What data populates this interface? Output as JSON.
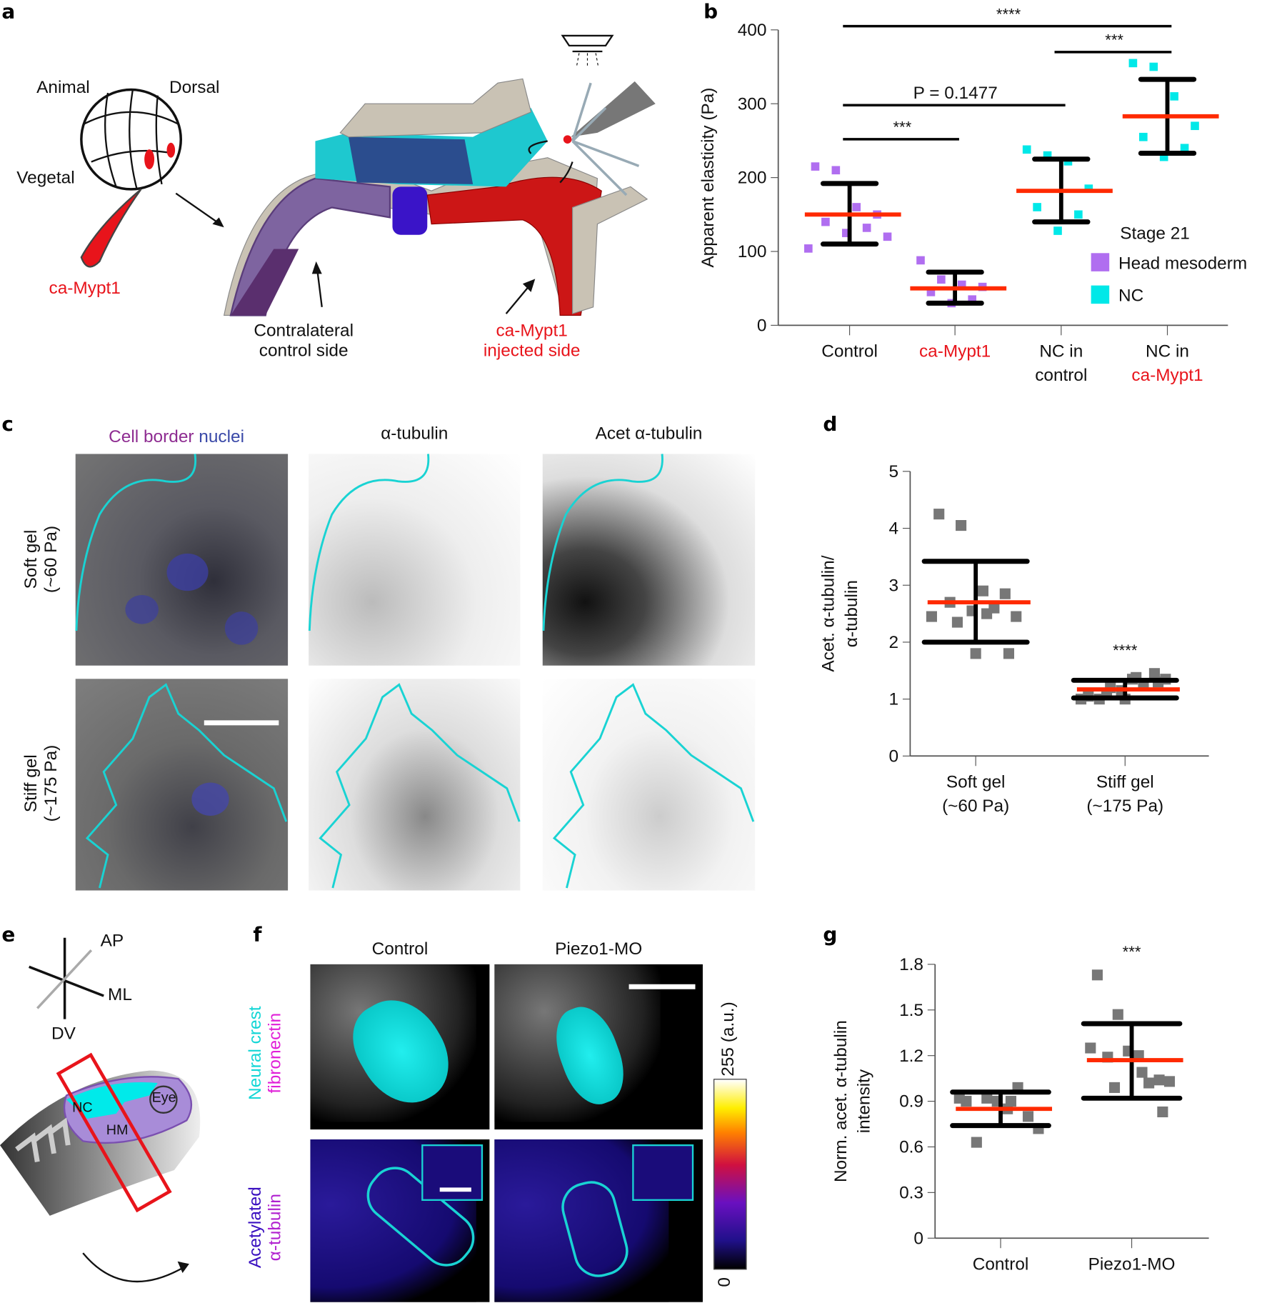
{
  "panels": {
    "a": "a",
    "b": "b",
    "c": "c",
    "d": "d",
    "e": "e",
    "f": "f",
    "g": "g"
  },
  "panel_a": {
    "animal": "Animal",
    "dorsal": "Dorsal",
    "vegetal": "Vegetal",
    "injection": "ca-Mypt1",
    "control_side_1": "Contralateral",
    "control_side_2": "control side",
    "injected_side_1": "ca-Mypt1",
    "injected_side_2": "injected side"
  },
  "panel_c": {
    "col1_part1": "Cell border",
    "col1_part2": "nuclei",
    "col2": "α-tubulin",
    "col3": "Acet α-tubulin",
    "row1_1": "Soft gel",
    "row1_2": "(~60 Pa)",
    "row2_1": "Stiff gel",
    "row2_2": "(~175 Pa)"
  },
  "panel_e": {
    "ap": "AP",
    "ml": "ML",
    "dv": "DV",
    "nc": "NC",
    "hm": "HM",
    "eye": "Eye"
  },
  "panel_f": {
    "col1": "Control",
    "col2": "Piezo1-MO",
    "row1_a": "Neural crest",
    "row1_b": "fibronectin",
    "row2_a": "Acetylated",
    "row2_b": "α-tubulin",
    "colorbar_max": "255 (a.u.)",
    "colorbar_min": "0"
  },
  "colors": {
    "red": "#ff2a00",
    "head_mesoderm": "#b06ef0",
    "nc": "#00e8e8",
    "points": "#777777",
    "cyan_outline": "#19d3d3"
  },
  "chart_data": [
    {
      "id": "b",
      "type": "scatter",
      "ylabel": "Apparent elasticity (Pa)",
      "ylim": [
        0,
        400
      ],
      "yticks": [
        0,
        100,
        200,
        300,
        400
      ],
      "categories": [
        "Control",
        "ca-Mypt1",
        "NC in control",
        "NC in ca-Mypt1"
      ],
      "category_lines": [
        [
          "Control"
        ],
        [
          "ca-Mypt1"
        ],
        [
          "NC in",
          "control"
        ],
        [
          "NC in",
          "ca-Mypt1"
        ]
      ],
      "category_colors": [
        [
          "#111"
        ],
        [
          "#e8141b"
        ],
        [
          "#111",
          "#111"
        ],
        [
          "#111",
          "#e8141b"
        ]
      ],
      "legend": {
        "title": "Stage 21",
        "items": [
          {
            "name": "Head mesoderm",
            "color": "#b06ef0"
          },
          {
            "name": "NC",
            "color": "#00e8e8"
          }
        ]
      },
      "groups": [
        {
          "color": "#b06ef0",
          "mean": 150,
          "sd_low": 110,
          "sd_high": 192,
          "points": [
            215,
            210,
            160,
            150,
            140,
            132,
            125,
            120,
            104
          ]
        },
        {
          "color": "#b06ef0",
          "mean": 50,
          "sd_low": 30,
          "sd_high": 72,
          "points": [
            88,
            62,
            55,
            52,
            45,
            35,
            30
          ]
        },
        {
          "color": "#00e8e8",
          "mean": 182,
          "sd_low": 140,
          "sd_high": 225,
          "points": [
            238,
            230,
            222,
            185,
            160,
            150,
            128
          ]
        },
        {
          "color": "#00e8e8",
          "mean": 283,
          "sd_low": 233,
          "sd_high": 333,
          "points": [
            355,
            350,
            310,
            270,
            255,
            240,
            228
          ]
        }
      ],
      "significance": [
        {
          "from": 0,
          "to": 3,
          "y": 405,
          "label": "****"
        },
        {
          "from": 2,
          "to": 3,
          "y": 370,
          "label": "***"
        },
        {
          "from": 0,
          "to": 2,
          "y": 298,
          "label": "P = 0.1477"
        },
        {
          "from": 0,
          "to": 1,
          "y": 252,
          "label": "***"
        }
      ]
    },
    {
      "id": "d",
      "type": "scatter",
      "ylabel_lines": [
        "Acet. α-tubulin/",
        "α-tubulin"
      ],
      "ylim": [
        0,
        5
      ],
      "yticks": [
        0,
        1,
        2,
        3,
        4,
        5
      ],
      "categories": [
        "Soft gel (~60 Pa)",
        "Stiff gel (~175 Pa)"
      ],
      "category_lines": [
        [
          "Soft gel",
          "(~60 Pa)"
        ],
        [
          "Stiff gel",
          "(~175 Pa)"
        ]
      ],
      "groups": [
        {
          "color": "#777777",
          "mean": 2.7,
          "sd_low": 2.0,
          "sd_high": 3.42,
          "points": [
            4.25,
            4.05,
            2.9,
            2.85,
            2.7,
            2.6,
            2.55,
            2.45,
            2.45,
            2.5,
            2.35,
            1.8,
            1.8
          ]
        },
        {
          "color": "#777777",
          "mean": 1.17,
          "sd_low": 1.02,
          "sd_high": 1.33,
          "points": [
            1.05,
            1.2,
            1.35,
            1.45,
            1.0,
            1.25,
            1.15,
            1.35,
            1.0,
            1.38,
            1.1,
            1.3,
            1.0
          ]
        }
      ],
      "annotations": [
        {
          "group": 1,
          "label": "****",
          "y": 1.85
        }
      ]
    },
    {
      "id": "g",
      "type": "scatter",
      "ylabel_lines": [
        "Norm. acet. α-tubulin",
        "intensity"
      ],
      "ylim": [
        0,
        1.8
      ],
      "yticks": [
        "0",
        "0.3",
        "0.6",
        "0.9",
        "1.2",
        "1.5",
        "1.8"
      ],
      "categories": [
        "Control",
        "Piezo1-MO"
      ],
      "category_lines": [
        [
          "Control"
        ],
        [
          "Piezo1-MO"
        ]
      ],
      "groups": [
        {
          "color": "#777777",
          "mean": 0.85,
          "sd_low": 0.74,
          "sd_high": 0.96,
          "points": [
            0.9,
            0.92,
            0.85,
            0.8,
            0.63,
            0.99,
            0.9,
            0.72,
            0.92,
            0.9
          ]
        },
        {
          "color": "#777777",
          "mean": 1.17,
          "sd_low": 0.92,
          "sd_high": 1.41,
          "points": [
            1.73,
            1.47,
            1.2,
            1.04,
            1.19,
            1.02,
            1.23,
            1.03,
            1.25,
            1.09,
            0.99,
            0.83
          ]
        }
      ],
      "annotations": [
        {
          "group": 1,
          "label": "***",
          "y": 1.88
        }
      ]
    }
  ]
}
